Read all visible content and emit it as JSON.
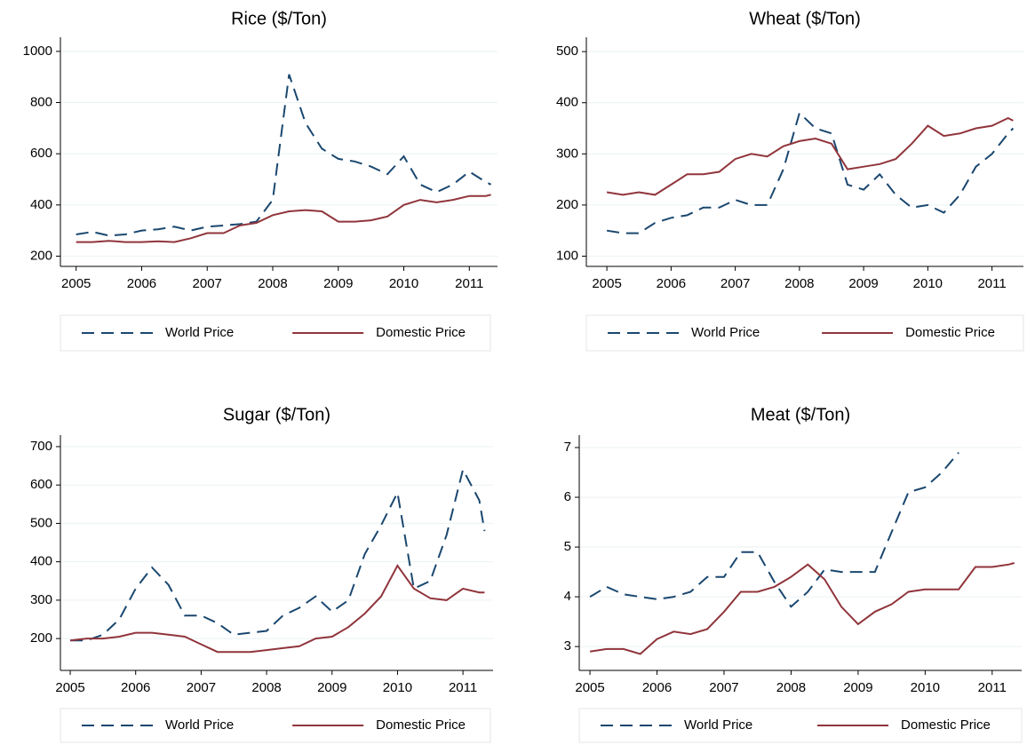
{
  "chart_data": [
    {
      "type": "line",
      "title": "Rice ($/Ton)",
      "x": [
        2005,
        2005.25,
        2005.5,
        2005.75,
        2006,
        2006.25,
        2006.5,
        2006.75,
        2007,
        2007.25,
        2007.5,
        2007.75,
        2008,
        2008.25,
        2008.5,
        2008.75,
        2009,
        2009.25,
        2009.5,
        2009.75,
        2010,
        2010.25,
        2010.5,
        2010.75,
        2011,
        2011.25,
        2011.33
      ],
      "series": [
        {
          "name": "World Price",
          "color": "#1a476f",
          "style": "dashed",
          "values": [
            285,
            295,
            280,
            285,
            300,
            305,
            315,
            300,
            315,
            320,
            325,
            335,
            420,
            910,
            720,
            620,
            580,
            570,
            550,
            520,
            590,
            480,
            450,
            480,
            530,
            490,
            480
          ]
        },
        {
          "name": "Domestic Price",
          "color": "#90353b",
          "style": "solid",
          "values": [
            255,
            255,
            260,
            255,
            255,
            258,
            255,
            270,
            290,
            290,
            320,
            330,
            360,
            375,
            380,
            375,
            335,
            335,
            340,
            355,
            400,
            420,
            410,
            420,
            435,
            435,
            440
          ]
        }
      ],
      "xlim": [
        2004.76,
        2011.43
      ],
      "ylim": [
        160,
        1055
      ],
      "xticks": [
        2005,
        2006,
        2007,
        2008,
        2009,
        2010,
        2011
      ],
      "yticks": [
        200,
        400,
        600,
        800,
        1000
      ],
      "grid": true
    },
    {
      "type": "line",
      "title": "Wheat ($/Ton)",
      "x": [
        2005,
        2005.25,
        2005.5,
        2005.75,
        2006,
        2006.25,
        2006.5,
        2006.75,
        2007,
        2007.25,
        2007.5,
        2007.75,
        2008,
        2008.25,
        2008.5,
        2008.75,
        2009,
        2009.25,
        2009.5,
        2009.75,
        2010,
        2010.25,
        2010.5,
        2010.75,
        2011,
        2011.25,
        2011.33
      ],
      "series": [
        {
          "name": "World Price",
          "color": "#1a476f",
          "style": "dashed",
          "values": [
            150,
            145,
            145,
            165,
            175,
            180,
            195,
            195,
            210,
            200,
            200,
            270,
            380,
            350,
            340,
            240,
            230,
            260,
            220,
            195,
            200,
            185,
            220,
            275,
            300,
            340,
            350
          ]
        },
        {
          "name": "Domestic Price",
          "color": "#90353b",
          "style": "solid",
          "values": [
            225,
            220,
            225,
            220,
            240,
            260,
            260,
            265,
            290,
            300,
            295,
            315,
            325,
            330,
            320,
            270,
            275,
            280,
            290,
            320,
            355,
            335,
            340,
            350,
            355,
            370,
            365
          ]
        }
      ],
      "xlim": [
        2004.68,
        2011.49
      ],
      "ylim": [
        80,
        528
      ],
      "xticks": [
        2005,
        2006,
        2007,
        2008,
        2009,
        2010,
        2011
      ],
      "yticks": [
        100,
        200,
        300,
        400,
        500
      ],
      "grid": true
    },
    {
      "type": "line",
      "title": "Sugar ($/Ton)",
      "x": [
        2005,
        2005.25,
        2005.5,
        2005.75,
        2006,
        2006.25,
        2006.5,
        2006.75,
        2007,
        2007.25,
        2007.5,
        2007.75,
        2008,
        2008.25,
        2008.5,
        2008.75,
        2009,
        2009.25,
        2009.5,
        2009.75,
        2010,
        2010.25,
        2010.5,
        2010.75,
        2011,
        2011.25,
        2011.33
      ],
      "series": [
        {
          "name": "World Price",
          "color": "#1a476f",
          "style": "dashed",
          "values": [
            195,
            195,
            210,
            250,
            330,
            385,
            340,
            260,
            260,
            240,
            210,
            215,
            220,
            260,
            280,
            310,
            270,
            300,
            420,
            495,
            580,
            330,
            350,
            470,
            640,
            560,
            480
          ]
        },
        {
          "name": "Domestic Price",
          "color": "#90353b",
          "style": "solid",
          "values": [
            195,
            200,
            200,
            205,
            215,
            215,
            210,
            205,
            185,
            165,
            165,
            165,
            170,
            175,
            180,
            200,
            205,
            230,
            265,
            310,
            390,
            330,
            305,
            300,
            330,
            320,
            320
          ]
        }
      ],
      "xlim": [
        2004.85,
        2011.46
      ],
      "ylim": [
        117,
        730
      ],
      "xticks": [
        2005,
        2006,
        2007,
        2008,
        2009,
        2010,
        2011
      ],
      "yticks": [
        200,
        300,
        400,
        500,
        600,
        700
      ],
      "grid": true
    },
    {
      "type": "line",
      "title": "Meat ($/Ton)",
      "x": [
        2005,
        2005.25,
        2005.5,
        2005.75,
        2006,
        2006.25,
        2006.5,
        2006.75,
        2007,
        2007.25,
        2007.5,
        2007.75,
        2008,
        2008.25,
        2008.5,
        2008.75,
        2009,
        2009.25,
        2009.5,
        2009.75,
        2010,
        2010.25,
        2010.5,
        2010.75,
        2011,
        2011.25,
        2011.33
      ],
      "series": [
        {
          "name": "World Price",
          "color": "#1a476f",
          "style": "dashed",
          "values": [
            4.0,
            4.2,
            4.05,
            4.0,
            3.95,
            4.0,
            4.1,
            4.4,
            4.4,
            4.9,
            4.9,
            4.3,
            3.8,
            4.1,
            4.55,
            4.5,
            4.5,
            4.5,
            5.3,
            6.1,
            6.2,
            6.5,
            6.9,
            null,
            null,
            null,
            null
          ]
        },
        {
          "name": "Domestic Price",
          "color": "#90353b",
          "style": "solid",
          "values": [
            2.9,
            2.95,
            2.95,
            2.85,
            3.15,
            3.3,
            3.25,
            3.35,
            3.7,
            4.1,
            4.1,
            4.2,
            4.4,
            4.65,
            4.35,
            3.8,
            3.45,
            3.7,
            3.85,
            4.1,
            4.15,
            4.15,
            4.15,
            4.6,
            4.6,
            4.65,
            4.68
          ]
        }
      ],
      "xlim": [
        2004.84,
        2011.44
      ],
      "ylim": [
        2.52,
        7.25
      ],
      "xticks": [
        2005,
        2006,
        2007,
        2008,
        2009,
        2010,
        2011
      ],
      "yticks": [
        3,
        4,
        5,
        6,
        7
      ],
      "grid": true
    }
  ]
}
